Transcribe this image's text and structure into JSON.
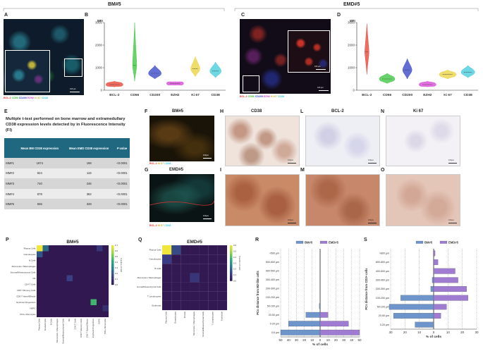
{
  "headers": {
    "bm": "BM#5",
    "emd": "EMD#5"
  },
  "panels": {
    "A": "A",
    "B": "B",
    "C": "C",
    "D": "D",
    "E": "E",
    "F": "F",
    "G": "G",
    "H": "H",
    "I": "I",
    "L": "L",
    "M": "M",
    "N": "N",
    "O": "O",
    "P": "P",
    "Q": "Q",
    "R": "R",
    "S": "S"
  },
  "legend": {
    "bcl2": "BCL-2",
    "cd56": "CD56",
    "cd200": "CD200",
    "ezh2": "EZH2",
    "ki67": "Ki 67",
    "cd38": "CD38"
  },
  "colors": {
    "bcl2": "#e8392a",
    "cd56": "#35c43a",
    "cd200": "#2f3fc7",
    "ezh2": "#d63fd6",
    "ki67": "#e8d23a",
    "cd38": "#3cc9d9"
  },
  "scalebars": {
    "a": "100 µm",
    "c_inset": "100 µm",
    "c": "100 µm",
    "f": "100µm",
    "g": "100µm",
    "ihc": "100µm"
  },
  "ihc_titles": {
    "h": "CD38",
    "l": "BCL-2",
    "n": "Ki 67"
  },
  "table": {
    "title": "Multiple t-test performed on bone marrow and extramedullary CD38 expression levels detected by in Fluorescence Intensity (FI)",
    "headers": [
      "",
      "Mean BM CD38 expression",
      "Mean EMD CD38 expression",
      "P value"
    ],
    "rows": [
      [
        "MM#1",
        "1874",
        "198",
        "<0.0001"
      ],
      [
        "MM#2",
        "824",
        "119",
        "<0.0001"
      ],
      [
        "MM#3",
        "740",
        "246",
        "<0.0001"
      ],
      [
        "MM#4",
        "878",
        "382",
        "<0.0001"
      ],
      [
        "MM#5",
        "665",
        "328",
        "<0.0001"
      ]
    ]
  },
  "chart_data": [
    {
      "panel": "B",
      "type": "violin",
      "title": "BM#5",
      "ylabel": "MFI",
      "ylim": [
        0,
        3000
      ],
      "yticks": [
        0,
        1000,
        2000,
        3000
      ],
      "categories": [
        "BCL-2",
        "CD56",
        "CD200",
        "EZH2",
        "Ki 67",
        "CD38"
      ],
      "medians": [
        250,
        1100,
        750,
        300,
        950,
        850
      ],
      "ranges": [
        [
          150,
          400
        ],
        [
          400,
          3000
        ],
        [
          500,
          1100
        ],
        [
          220,
          380
        ],
        [
          600,
          1500
        ],
        [
          550,
          1250
        ]
      ]
    },
    {
      "panel": "D",
      "type": "violin",
      "title": "EMD#5",
      "ylabel": "MFI",
      "ylim": [
        0,
        3000
      ],
      "yticks": [
        0,
        1000,
        2000,
        3000
      ],
      "categories": [
        "BCL-2",
        "CD56",
        "CD200",
        "EZH2",
        "Ki 67",
        "CD38"
      ],
      "medians": [
        1700,
        500,
        900,
        250,
        700,
        800
      ],
      "ranges": [
        [
          700,
          2950
        ],
        [
          300,
          750
        ],
        [
          500,
          1400
        ],
        [
          150,
          400
        ],
        [
          500,
          900
        ],
        [
          550,
          1100
        ]
      ]
    },
    {
      "panel": "P",
      "type": "heatmap",
      "title": "BM#5",
      "rows": [
        "Plasma Cells",
        "Granulocytes",
        "B Cells",
        "Monocytes / Macrophages",
        "Stromal/Mesenchymal Cells",
        "NK",
        "CD4 T Cells",
        "CD8 T Memory Cells",
        "CD8 T Naive/Effector",
        "Erythroid Progenitors",
        "HSPC",
        "PD1+ Monocytes"
      ],
      "colorbar_ticks": [
        0.0,
        0.1,
        0.2,
        0.3,
        0.4,
        0.5,
        0.6,
        0.7
      ],
      "colorbar_label": "Fraction of cells",
      "highlights": [
        {
          "row": 0,
          "col": 0,
          "value": 0.7
        },
        {
          "row": 0,
          "col": 1,
          "value": 0.25
        },
        {
          "row": 1,
          "col": 0,
          "value": 0.2
        },
        {
          "row": 9,
          "col": 9,
          "value": 0.45
        },
        {
          "row": 5,
          "col": 5,
          "value": 0.15
        },
        {
          "row": 0,
          "col": 10,
          "value": 0.12
        },
        {
          "row": 10,
          "col": 11,
          "value": 0.1
        }
      ]
    },
    {
      "panel": "Q",
      "type": "heatmap",
      "title": "EMD#5",
      "rows": [
        "Plasma Cells",
        "Granulocytes",
        "B Cells",
        "Monocytes / Macrophages",
        "Stromal/Mesenchymal Cells",
        "T Lymphocytes",
        "Erythroids"
      ],
      "colorbar_ticks": [
        0.0,
        0.1,
        0.2,
        0.3,
        0.4,
        0.5,
        0.6
      ],
      "colorbar_label": "Fraction of cells",
      "highlights": [
        {
          "row": 0,
          "col": 0,
          "value": 0.6
        },
        {
          "row": 0,
          "col": 1,
          "value": 0.15
        },
        {
          "row": 1,
          "col": 0,
          "value": 0.12
        },
        {
          "row": 3,
          "col": 3,
          "value": 0.1
        }
      ]
    },
    {
      "panel": "R",
      "type": "bar",
      "orientation": "horizontal",
      "ylabel": "PCs distance from M2-like cells",
      "xlabel": "% of cells",
      "categories": [
        ">500 µm",
        "500-600 µm",
        "400-500 µm",
        "300-400 µm",
        "200-300 µm",
        "100-200 µm",
        "50-100 µm",
        "20-50 µm",
        "0-20 µm",
        "0-6 µm"
      ],
      "xticks": [
        "50",
        "40",
        "30",
        "20",
        "10",
        "0",
        "10",
        "20",
        "30",
        "40",
        "50"
      ],
      "series": [
        {
          "name": "BM#5",
          "values": [
            0,
            0,
            0,
            0,
            0,
            0,
            1,
            18,
            40,
            50
          ]
        },
        {
          "name": "EMD#5",
          "values": [
            0,
            0,
            0,
            0,
            0,
            0,
            0,
            10,
            36,
            50
          ]
        }
      ]
    },
    {
      "panel": "S",
      "type": "bar",
      "orientation": "horizontal",
      "ylabel": "PCs distance from CD3+ cells",
      "xlabel": "% of cells",
      "categories": [
        ">800 µm",
        "600-800 µm",
        "400-600 µm",
        "300-400 µm",
        "200-300 µm",
        "100-200 µm",
        "50-100 µm",
        "20-50 µm",
        "0-20 µm"
      ],
      "xticks": [
        "30",
        "20",
        "10",
        "0",
        "10",
        "20",
        "30"
      ],
      "series": [
        {
          "name": "BM#5",
          "values": [
            0,
            0,
            0,
            1,
            2,
            23,
            31,
            28,
            13
          ]
        },
        {
          "name": "EMD#5",
          "values": [
            1,
            3,
            15,
            17,
            23,
            24,
            9,
            5,
            0
          ]
        }
      ]
    }
  ]
}
